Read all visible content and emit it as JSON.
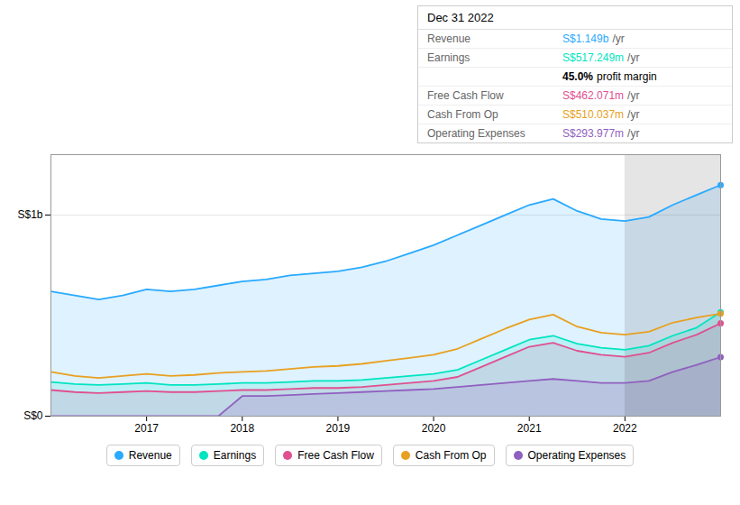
{
  "chart_data": {
    "type": "area",
    "x": [
      2016,
      2016.25,
      2016.5,
      2016.75,
      2017,
      2017.25,
      2017.5,
      2017.75,
      2018,
      2018.25,
      2018.5,
      2018.75,
      2019,
      2019.25,
      2019.5,
      2019.75,
      2020,
      2020.25,
      2020.5,
      2020.75,
      2021,
      2021.25,
      2021.5,
      2021.75,
      2022,
      2022.25,
      2022.5,
      2022.75,
      2023
    ],
    "series": [
      {
        "name": "Revenue",
        "color": "#29aaff",
        "type": "area",
        "values": [
          0.62,
          0.6,
          0.58,
          0.6,
          0.63,
          0.62,
          0.63,
          0.65,
          0.67,
          0.68,
          0.7,
          0.71,
          0.72,
          0.74,
          0.77,
          0.81,
          0.85,
          0.9,
          0.95,
          1.0,
          1.05,
          1.08,
          1.02,
          0.98,
          0.97,
          0.99,
          1.05,
          1.1,
          1.149
        ]
      },
      {
        "name": "Earnings",
        "color": "#00e5c0",
        "type": "area",
        "values": [
          0.17,
          0.16,
          0.155,
          0.16,
          0.165,
          0.155,
          0.155,
          0.16,
          0.165,
          0.165,
          0.17,
          0.175,
          0.175,
          0.18,
          0.19,
          0.2,
          0.21,
          0.23,
          0.28,
          0.33,
          0.38,
          0.4,
          0.36,
          0.34,
          0.33,
          0.35,
          0.4,
          0.44,
          0.517
        ]
      },
      {
        "name": "Free Cash Flow",
        "color": "#e05090",
        "type": "area",
        "values": [
          0.13,
          0.12,
          0.115,
          0.12,
          0.125,
          0.12,
          0.12,
          0.125,
          0.13,
          0.13,
          0.135,
          0.14,
          0.14,
          0.145,
          0.155,
          0.165,
          0.175,
          0.195,
          0.245,
          0.295,
          0.345,
          0.365,
          0.325,
          0.305,
          0.295,
          0.315,
          0.365,
          0.405,
          0.462
        ]
      },
      {
        "name": "Cash From Op",
        "color": "#e8a020",
        "type": "line",
        "values": [
          0.22,
          0.2,
          0.19,
          0.2,
          0.21,
          0.2,
          0.205,
          0.215,
          0.22,
          0.225,
          0.235,
          0.245,
          0.25,
          0.26,
          0.275,
          0.29,
          0.305,
          0.335,
          0.385,
          0.435,
          0.48,
          0.505,
          0.445,
          0.415,
          0.405,
          0.42,
          0.465,
          0.49,
          0.51
        ]
      },
      {
        "name": "Operating Expenses",
        "color": "#9060c0",
        "type": "area",
        "values": [
          0.0,
          0.0,
          0.0,
          0.0,
          0.0,
          0.0,
          0.0,
          0.0,
          0.1,
          0.1,
          0.105,
          0.11,
          0.115,
          0.12,
          0.125,
          0.13,
          0.135,
          0.145,
          0.155,
          0.165,
          0.175,
          0.185,
          0.175,
          0.165,
          0.165,
          0.175,
          0.22,
          0.255,
          0.294
        ]
      }
    ],
    "xlim": [
      2016,
      2023
    ],
    "xticks": [
      2017,
      2018,
      2019,
      2020,
      2021,
      2022
    ],
    "ylim": [
      0,
      1.3
    ],
    "yticks": [
      {
        "value": 0,
        "label": "S$0"
      },
      {
        "value": 1,
        "label": "S$1b"
      }
    ],
    "grid": true,
    "highlight_x": [
      2022,
      2023
    ],
    "info_box": {
      "title": "Dec 31 2022",
      "rows": [
        {
          "label": "Revenue",
          "value": "S$1.149b",
          "color": "#29aaff",
          "unit": "/yr"
        },
        {
          "label": "Earnings",
          "value": "S$517.249m",
          "color": "#00e5c0",
          "unit": "/yr"
        },
        {
          "value": "45.0%",
          "color": "#000000",
          "unit": "profit margin"
        },
        {
          "label": "Free Cash Flow",
          "value": "S$462.071m",
          "color": "#e05090",
          "unit": "/yr"
        },
        {
          "label": "Cash From Op",
          "value": "S$510.037m",
          "color": "#e8a020",
          "unit": "/yr"
        },
        {
          "label": "Operating Expenses",
          "value": "S$293.977m",
          "color": "#9060c0",
          "unit": "/yr"
        }
      ]
    }
  }
}
